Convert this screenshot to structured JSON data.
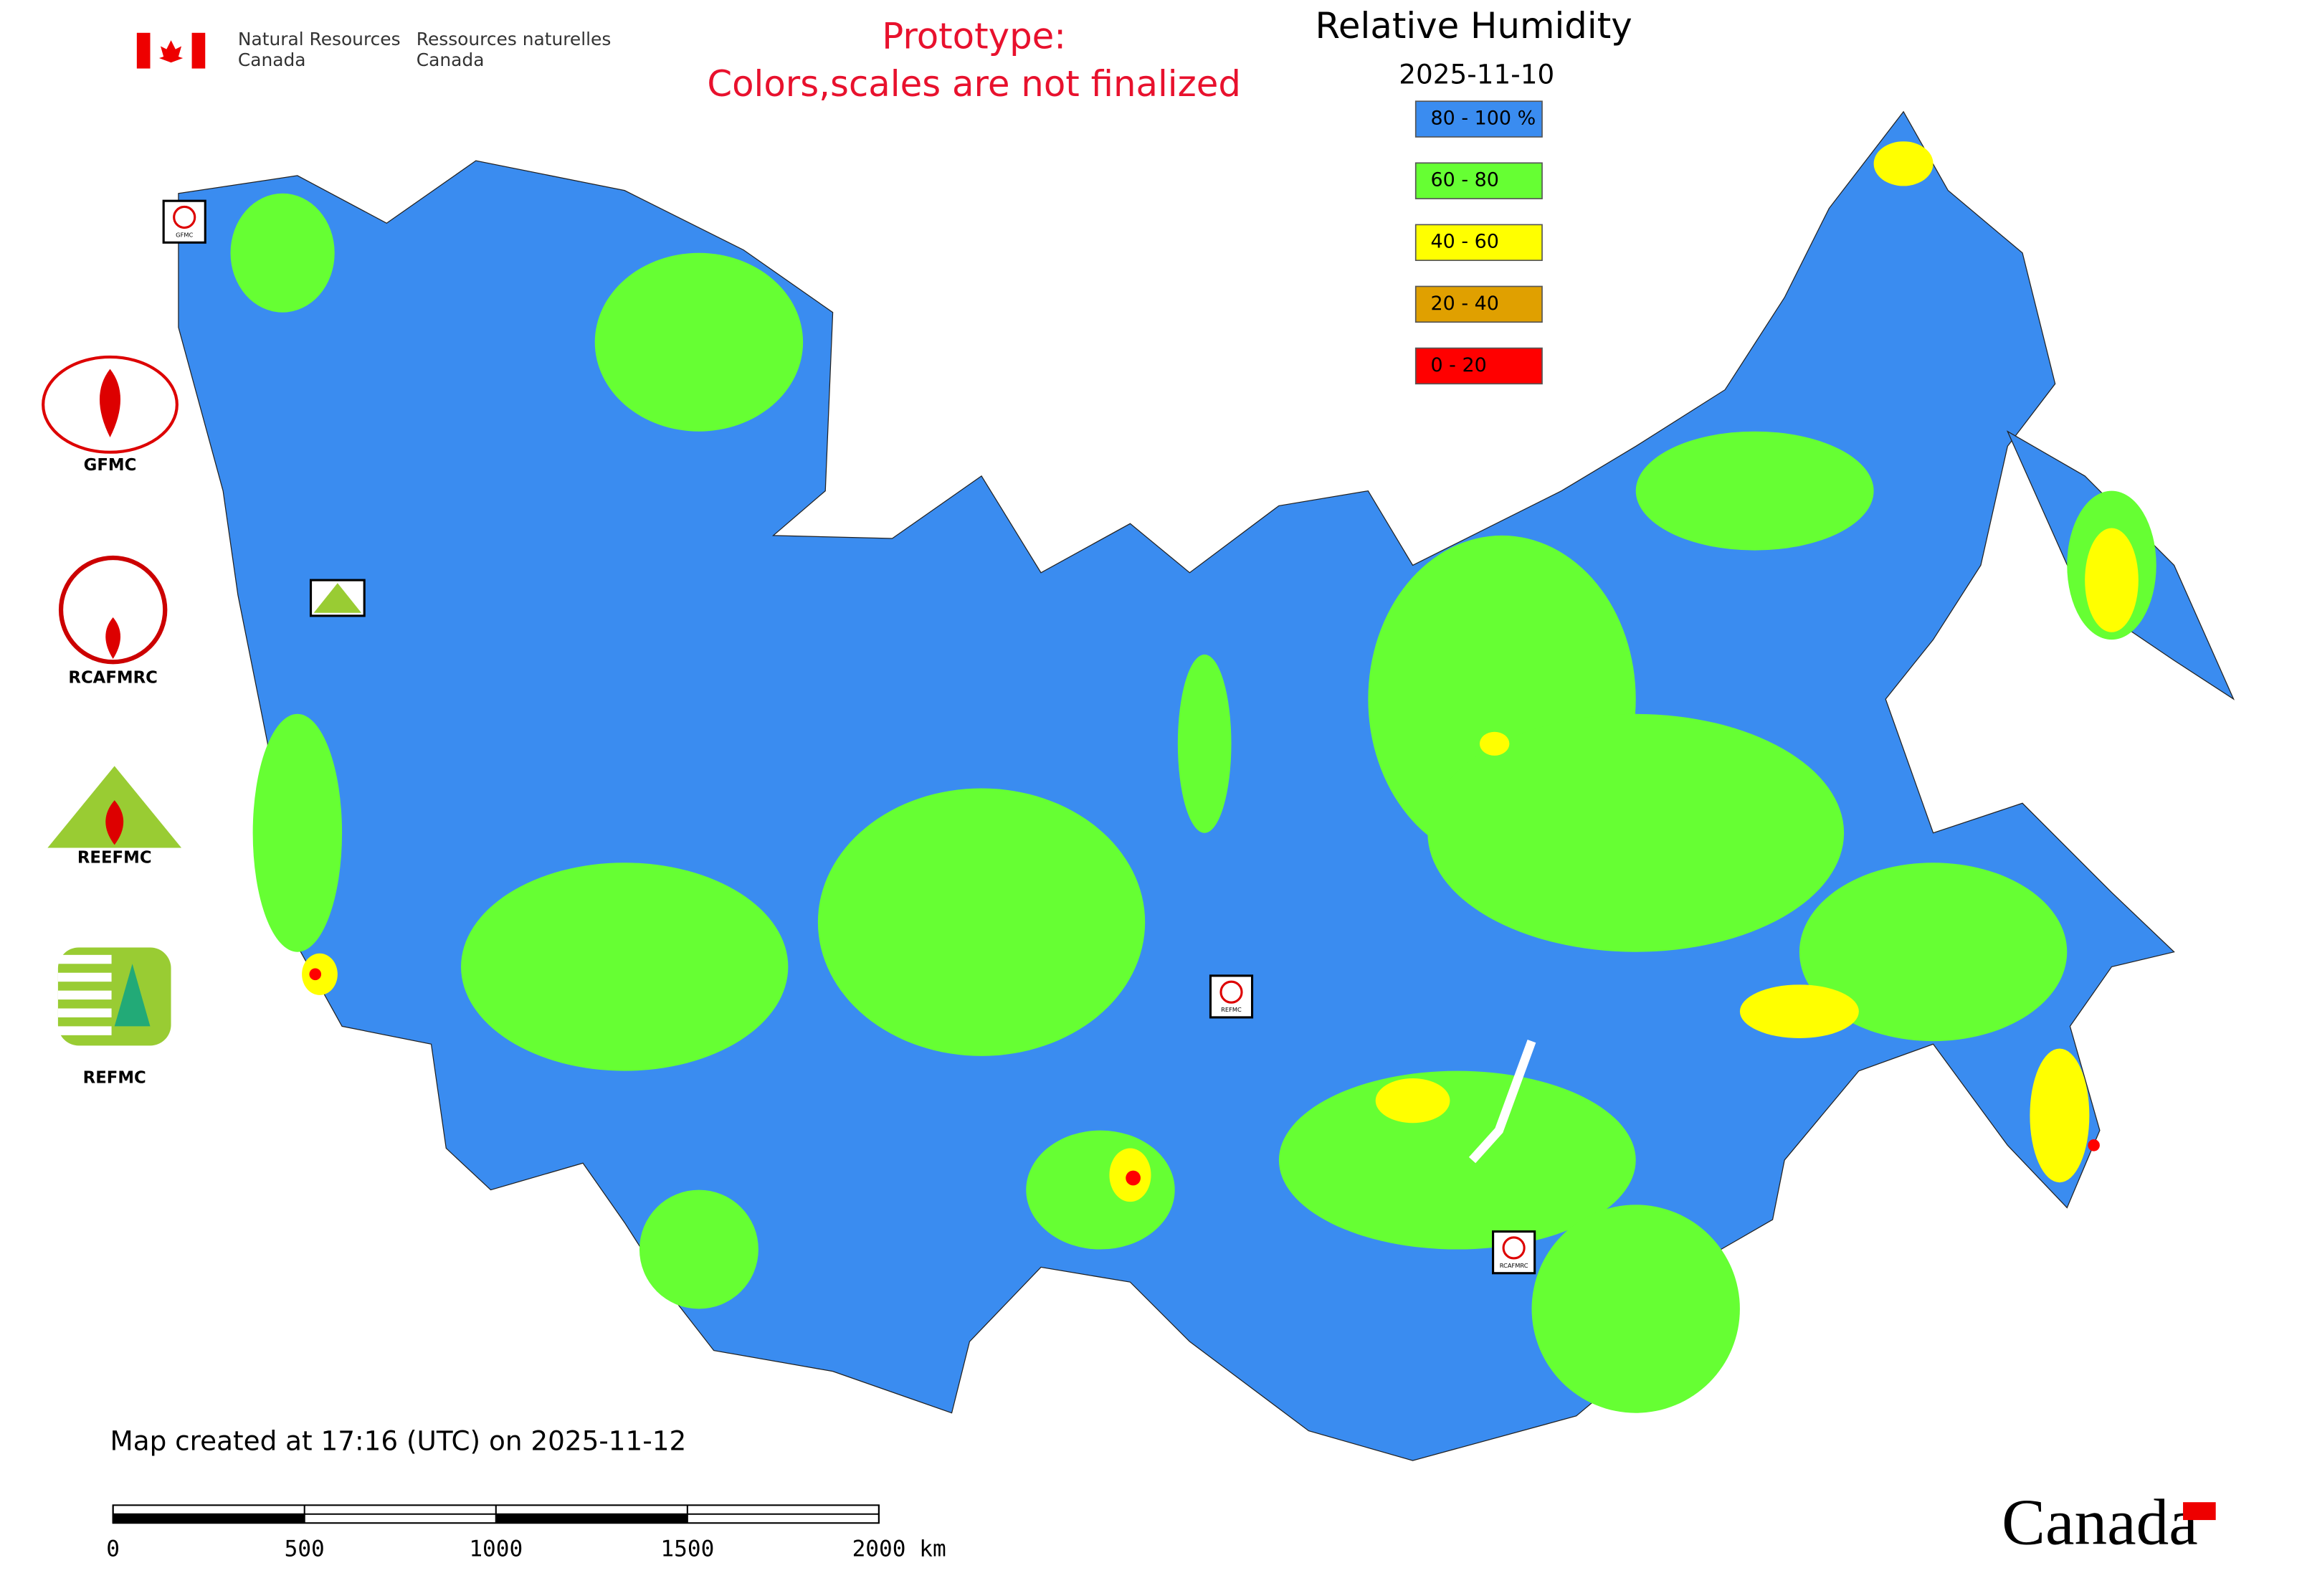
{
  "header": {
    "department_en": [
      "Natural Resources",
      "Canada"
    ],
    "department_fr": [
      "Ressources naturelles",
      "Canada"
    ],
    "notice": [
      "Prototype:",
      "Colors,scales are not finalized"
    ]
  },
  "map": {
    "title": "Relative Humidity",
    "date": "2025-11-10",
    "legend": [
      {
        "label": "80 - 100 %",
        "color": "#3a8cf0"
      },
      {
        "label": "60 - 80",
        "color": "#66ff33"
      },
      {
        "label": "40 - 60",
        "color": "#ffff00"
      },
      {
        "label": "20 - 40",
        "color": "#e0a000"
      },
      {
        "label": "0 - 20",
        "color": "#ff0000"
      }
    ],
    "stations": [
      "GFMC",
      "REFMC",
      "RCAFMRC"
    ]
  },
  "logos": [
    "GFMC",
    "RCAFMRC",
    "REEFMC",
    "REFMC"
  ],
  "footer": {
    "created": "Map created at 17:16 (UTC) on 2025-11-12",
    "scale_labels": [
      "0",
      "500",
      "1000",
      "1500",
      "2000 km"
    ],
    "wordmark": "Canada"
  }
}
